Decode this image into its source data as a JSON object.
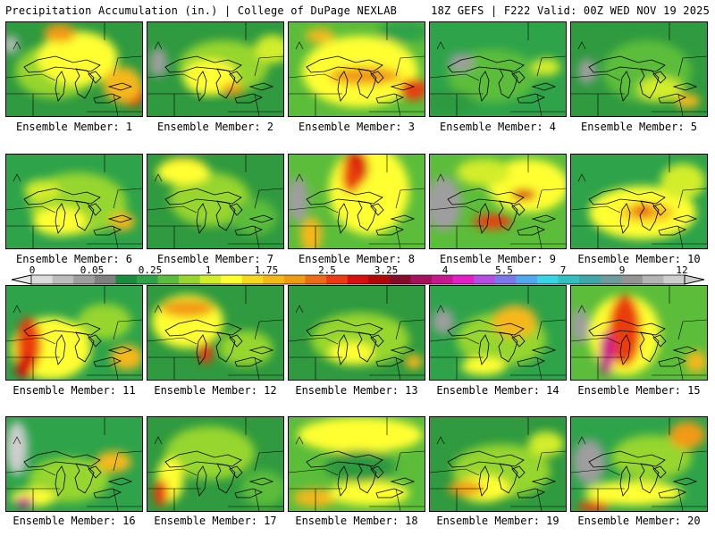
{
  "header": {
    "left": "Precipitation Accumulation (in.) | College of DuPage NEXLAB",
    "right": "18Z GEFS | F222 Valid: 00Z WED NOV 19 2025"
  },
  "scale": {
    "labels": [
      "0",
      "0.05",
      "0.25",
      "1",
      "1.75",
      "2.5",
      "3.25",
      "4",
      "5.5",
      "7",
      "9",
      "12"
    ],
    "colors": [
      "#dcdcdc",
      "#bdbdbd",
      "#9e9e9e",
      "#808080",
      "#1a8c3e",
      "#2ea34a",
      "#5cbd3a",
      "#96d62e",
      "#d2ed2a",
      "#ffff33",
      "#f8d81e",
      "#f5b81a",
      "#f29a14",
      "#ef6c12",
      "#ea3c10",
      "#d41010",
      "#b00808",
      "#8a0a2a",
      "#a8105e",
      "#c81890",
      "#e020c8",
      "#b44ce6",
      "#7a78ee",
      "#50a8f0",
      "#38d4e8",
      "#30c0c0",
      "#3ca8a8",
      "#6c9c9c",
      "#949494",
      "#b4b4b4",
      "#cecece"
    ]
  },
  "members": [
    {
      "label": "Ensemble Member: 1",
      "base": "#2f9a3f",
      "blobs": [
        [
          "#96d62e",
          55,
          55,
          45,
          30
        ],
        [
          "#ffff33",
          80,
          40,
          45,
          30
        ],
        [
          "#f29a14",
          60,
          12,
          18,
          10
        ],
        [
          "#ea3c10",
          140,
          80,
          16,
          14
        ],
        [
          "#f5b81a",
          130,
          70,
          22,
          20
        ],
        [
          "#bdbdbd",
          5,
          25,
          8,
          10
        ]
      ]
    },
    {
      "label": "Ensemble Member: 2",
      "base": "#2f9a3f",
      "blobs": [
        [
          "#96d62e",
          85,
          50,
          50,
          30
        ],
        [
          "#ffff33",
          70,
          62,
          30,
          20
        ],
        [
          "#f29a14",
          95,
          75,
          12,
          7
        ],
        [
          "#9e9e9e",
          12,
          45,
          10,
          16
        ],
        [
          "#d2ed2a",
          140,
          30,
          20,
          16
        ]
      ]
    },
    {
      "label": "Ensemble Member: 3",
      "base": "#5cbd3a",
      "blobs": [
        [
          "#ffff33",
          80,
          55,
          65,
          40
        ],
        [
          "#f29a14",
          85,
          60,
          40,
          10
        ],
        [
          "#ea3c10",
          140,
          75,
          16,
          12
        ],
        [
          "#f5b81a",
          35,
          15,
          16,
          8
        ],
        [
          "#2ea34a",
          130,
          10,
          30,
          12
        ]
      ]
    },
    {
      "label": "Ensemble Member: 4",
      "base": "#2ea34a",
      "blobs": [
        [
          "#5cbd3a",
          70,
          60,
          50,
          30
        ],
        [
          "#9e9e9e",
          35,
          45,
          14,
          10
        ],
        [
          "#d2ed2a",
          130,
          50,
          16,
          10
        ],
        [
          "#2f9a3f",
          20,
          90,
          30,
          14
        ]
      ]
    },
    {
      "label": "Ensemble Member: 5",
      "base": "#2f9a3f",
      "blobs": [
        [
          "#5cbd3a",
          85,
          55,
          50,
          35
        ],
        [
          "#d2ed2a",
          100,
          75,
          25,
          14
        ],
        [
          "#9e9e9e",
          18,
          55,
          10,
          14
        ],
        [
          "#f5b81a",
          130,
          88,
          14,
          8
        ]
      ]
    },
    {
      "label": "Ensemble Member: 6",
      "base": "#2ea34a",
      "blobs": [
        [
          "#96d62e",
          80,
          55,
          55,
          35
        ],
        [
          "#ffff33",
          60,
          75,
          30,
          16
        ],
        [
          "#f5b81a",
          130,
          75,
          14,
          10
        ],
        [
          "#d2ed2a",
          40,
          40,
          20,
          12
        ]
      ]
    },
    {
      "label": "Ensemble Member: 7",
      "base": "#2f9a3f",
      "blobs": [
        [
          "#96d62e",
          70,
          50,
          45,
          30
        ],
        [
          "#f5b81a",
          40,
          15,
          25,
          12
        ],
        [
          "#ffff33",
          40,
          20,
          30,
          14
        ],
        [
          "#5cbd3a",
          120,
          70,
          25,
          20
        ]
      ]
    },
    {
      "label": "Ensemble Member: 8",
      "base": "#5cbd3a",
      "blobs": [
        [
          "#ffff33",
          90,
          40,
          45,
          50
        ],
        [
          "#d41010",
          75,
          15,
          14,
          20
        ],
        [
          "#ea3c10",
          70,
          25,
          10,
          18
        ],
        [
          "#9e9e9e",
          10,
          50,
          12,
          25
        ],
        [
          "#f5b81a",
          25,
          90,
          12,
          20
        ]
      ]
    },
    {
      "label": "Ensemble Member: 9",
      "base": "#5cbd3a",
      "blobs": [
        [
          "#ffff33",
          110,
          35,
          45,
          30
        ],
        [
          "#9e9e9e",
          15,
          55,
          20,
          30
        ],
        [
          "#ea3c10",
          70,
          75,
          22,
          8
        ],
        [
          "#d41010",
          105,
          45,
          14,
          6
        ],
        [
          "#d2ed2a",
          60,
          20,
          30,
          15
        ]
      ]
    },
    {
      "label": "Ensemble Member: 10",
      "base": "#2ea34a",
      "blobs": [
        [
          "#ffff33",
          80,
          65,
          60,
          30
        ],
        [
          "#f5b81a",
          85,
          65,
          30,
          10
        ],
        [
          "#ea3c10",
          80,
          62,
          10,
          6
        ],
        [
          "#d2ed2a",
          125,
          30,
          25,
          20
        ]
      ]
    },
    {
      "label": "Ensemble Member: 11",
      "base": "#2ea34a",
      "blobs": [
        [
          "#ffff33",
          50,
          70,
          45,
          35
        ],
        [
          "#ea3c10",
          25,
          65,
          14,
          30
        ],
        [
          "#d41010",
          20,
          90,
          10,
          14
        ],
        [
          "#f5b81a",
          135,
          80,
          18,
          14
        ],
        [
          "#96d62e",
          110,
          40,
          30,
          20
        ]
      ]
    },
    {
      "label": "Ensemble Member: 12",
      "base": "#2f9a3f",
      "blobs": [
        [
          "#ffff33",
          45,
          40,
          40,
          30
        ],
        [
          "#f29a14",
          45,
          25,
          30,
          10
        ],
        [
          "#ea3c10",
          65,
          75,
          8,
          12
        ],
        [
          "#96d62e",
          110,
          70,
          30,
          20
        ]
      ]
    },
    {
      "label": "Ensemble Member: 13",
      "base": "#2f9a3f",
      "blobs": [
        [
          "#96d62e",
          80,
          60,
          55,
          30
        ],
        [
          "#ffff33",
          70,
          75,
          25,
          12
        ],
        [
          "#f5b81a",
          140,
          85,
          10,
          8
        ]
      ]
    },
    {
      "label": "Ensemble Member: 14",
      "base": "#2ea34a",
      "blobs": [
        [
          "#96d62e",
          80,
          60,
          50,
          30
        ],
        [
          "#9e9e9e",
          15,
          40,
          12,
          14
        ],
        [
          "#f5b81a",
          95,
          40,
          25,
          18
        ],
        [
          "#ffff33",
          60,
          90,
          25,
          10
        ]
      ]
    },
    {
      "label": "Ensemble Member: 15",
      "base": "#5cbd3a",
      "blobs": [
        [
          "#ffff33",
          60,
          55,
          40,
          45
        ],
        [
          "#ea3c10",
          60,
          50,
          18,
          40
        ],
        [
          "#c81890",
          40,
          75,
          8,
          25
        ],
        [
          "#9e9e9e",
          10,
          45,
          10,
          20
        ],
        [
          "#f5b81a",
          140,
          85,
          12,
          12
        ]
      ]
    },
    {
      "label": "Ensemble Member: 16",
      "base": "#2ea34a",
      "blobs": [
        [
          "#96d62e",
          70,
          70,
          45,
          25
        ],
        [
          "#cecece",
          12,
          35,
          12,
          30
        ],
        [
          "#ffff33",
          30,
          90,
          25,
          10
        ],
        [
          "#c81890",
          20,
          95,
          10,
          6
        ],
        [
          "#f5b81a",
          120,
          50,
          20,
          12
        ]
      ]
    },
    {
      "label": "Ensemble Member: 17",
      "base": "#2f9a3f",
      "blobs": [
        [
          "#96d62e",
          70,
          40,
          50,
          30
        ],
        [
          "#ffff33",
          25,
          70,
          15,
          25
        ],
        [
          "#ea3c10",
          15,
          85,
          8,
          15
        ],
        [
          "#5cbd3a",
          130,
          80,
          25,
          20
        ]
      ]
    },
    {
      "label": "Ensemble Member: 18",
      "base": "#5cbd3a",
      "blobs": [
        [
          "#ffff33",
          80,
          20,
          70,
          20
        ],
        [
          "#f5b81a",
          30,
          90,
          25,
          10
        ],
        [
          "#ffff33",
          90,
          85,
          45,
          14
        ],
        [
          "#2f9a3f",
          80,
          55,
          40,
          18
        ]
      ]
    },
    {
      "label": "Ensemble Member: 19",
      "base": "#2f9a3f",
      "blobs": [
        [
          "#96d62e",
          80,
          60,
          55,
          30
        ],
        [
          "#ffff33",
          60,
          80,
          30,
          15
        ],
        [
          "#f29a14",
          40,
          80,
          20,
          8
        ],
        [
          "#d2ed2a",
          130,
          30,
          20,
          14
        ]
      ]
    },
    {
      "label": "Ensemble Member: 20",
      "base": "#2ea34a",
      "blobs": [
        [
          "#96d62e",
          90,
          45,
          45,
          25
        ],
        [
          "#9e9e9e",
          20,
          50,
          18,
          25
        ],
        [
          "#ffff33",
          70,
          85,
          55,
          14
        ],
        [
          "#ea3c10",
          25,
          100,
          18,
          6
        ],
        [
          "#f29a14",
          130,
          20,
          20,
          15
        ]
      ]
    }
  ]
}
